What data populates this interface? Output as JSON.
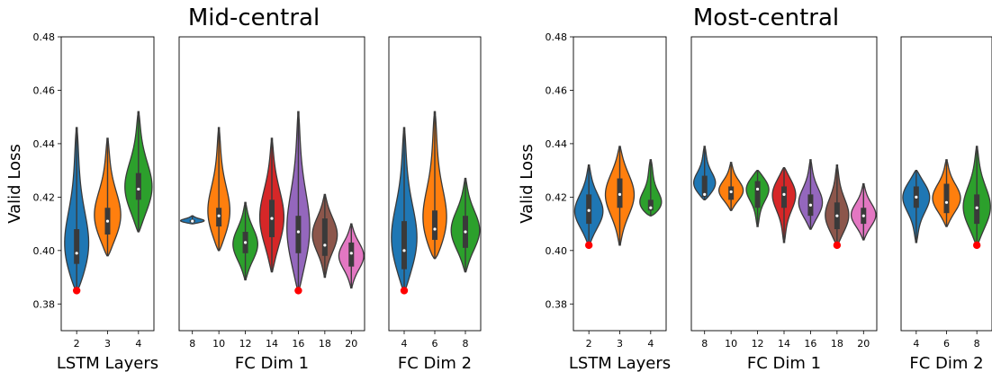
{
  "colors": {
    "blue": "#1f77b4",
    "orange": "#ff7f0e",
    "green": "#2ca02c",
    "red": "#d62728",
    "purple": "#9467bd",
    "brown": "#8c564b",
    "pink": "#e377c2",
    "outline": "#3a3a3a",
    "min_marker": "#ff0000"
  },
  "chart_data": [
    {
      "type": "violin",
      "title": "Mid-central",
      "ylabel": "Valid Loss",
      "ylim": [
        0.37,
        0.48
      ],
      "yticks": [
        "0.38",
        "0.40",
        "0.42",
        "0.44",
        "0.46",
        "0.48"
      ],
      "panels": [
        {
          "xlabel": "LSTM Layers",
          "categories": [
            "2",
            "3",
            "4"
          ],
          "violins": [
            {
              "color": "blue",
              "min": 0.385,
              "max": 0.446,
              "q1": 0.395,
              "median": 0.399,
              "q3": 0.408,
              "mode": 0.398,
              "min_marker": true
            },
            {
              "color": "orange",
              "min": 0.398,
              "max": 0.442,
              "q1": 0.406,
              "median": 0.411,
              "q3": 0.416,
              "mode": 0.411
            },
            {
              "color": "green",
              "min": 0.407,
              "max": 0.452,
              "q1": 0.419,
              "median": 0.423,
              "q3": 0.429,
              "mode": 0.422
            }
          ]
        },
        {
          "xlabel": "FC Dim 1",
          "categories": [
            "8",
            "10",
            "12",
            "14",
            "16",
            "18",
            "20"
          ],
          "violins": [
            {
              "color": "blue",
              "min": 0.41,
              "max": 0.413,
              "q1": 0.4105,
              "median": 0.411,
              "q3": 0.4115,
              "mode": 0.411
            },
            {
              "color": "orange",
              "min": 0.4,
              "max": 0.446,
              "q1": 0.409,
              "median": 0.413,
              "q3": 0.416,
              "mode": 0.412
            },
            {
              "color": "green",
              "min": 0.389,
              "max": 0.418,
              "q1": 0.399,
              "median": 0.403,
              "q3": 0.407,
              "mode": 0.402
            },
            {
              "color": "red",
              "min": 0.392,
              "max": 0.442,
              "q1": 0.405,
              "median": 0.412,
              "q3": 0.419,
              "mode": 0.411
            },
            {
              "color": "purple",
              "min": 0.385,
              "max": 0.452,
              "q1": 0.399,
              "median": 0.407,
              "q3": 0.413,
              "mode": 0.405,
              "min_marker": true
            },
            {
              "color": "brown",
              "min": 0.39,
              "max": 0.421,
              "q1": 0.398,
              "median": 0.402,
              "q3": 0.412,
              "mode": 0.406
            },
            {
              "color": "pink",
              "min": 0.386,
              "max": 0.41,
              "q1": 0.394,
              "median": 0.399,
              "q3": 0.403,
              "mode": 0.398
            }
          ]
        },
        {
          "xlabel": "FC Dim 2",
          "categories": [
            "4",
            "6",
            "8"
          ],
          "violins": [
            {
              "color": "blue",
              "min": 0.385,
              "max": 0.446,
              "q1": 0.393,
              "median": 0.4,
              "q3": 0.411,
              "mode": 0.401,
              "min_marker": true
            },
            {
              "color": "orange",
              "min": 0.397,
              "max": 0.452,
              "q1": 0.404,
              "median": 0.408,
              "q3": 0.415,
              "mode": 0.408
            },
            {
              "color": "green",
              "min": 0.392,
              "max": 0.427,
              "q1": 0.401,
              "median": 0.407,
              "q3": 0.413,
              "mode": 0.407
            }
          ]
        }
      ]
    },
    {
      "type": "violin",
      "title": "Most-central",
      "ylabel": "Valid Loss",
      "ylim": [
        0.37,
        0.48
      ],
      "yticks": [
        "0.38",
        "0.40",
        "0.42",
        "0.44",
        "0.46",
        "0.48"
      ],
      "panels": [
        {
          "xlabel": "LSTM Layers",
          "categories": [
            "2",
            "3",
            "4"
          ],
          "violins": [
            {
              "color": "blue",
              "min": 0.402,
              "max": 0.432,
              "q1": 0.41,
              "median": 0.415,
              "q3": 0.421,
              "mode": 0.414,
              "min_marker": true
            },
            {
              "color": "orange",
              "min": 0.402,
              "max": 0.439,
              "q1": 0.416,
              "median": 0.421,
              "q3": 0.427,
              "mode": 0.421
            },
            {
              "color": "green",
              "min": 0.413,
              "max": 0.434,
              "q1": 0.415,
              "median": 0.416,
              "q3": 0.419,
              "mode": 0.416
            }
          ]
        },
        {
          "xlabel": "FC Dim 1",
          "categories": [
            "8",
            "10",
            "12",
            "14",
            "16",
            "18",
            "20"
          ],
          "violins": [
            {
              "color": "blue",
              "min": 0.419,
              "max": 0.439,
              "q1": 0.42,
              "median": 0.421,
              "q3": 0.428,
              "mode": 0.424
            },
            {
              "color": "orange",
              "min": 0.415,
              "max": 0.433,
              "q1": 0.419,
              "median": 0.422,
              "q3": 0.424,
              "mode": 0.422
            },
            {
              "color": "green",
              "min": 0.409,
              "max": 0.43,
              "q1": 0.416,
              "median": 0.423,
              "q3": 0.426,
              "mode": 0.424
            },
            {
              "color": "red",
              "min": 0.403,
              "max": 0.431,
              "q1": 0.416,
              "median": 0.421,
              "q3": 0.424,
              "mode": 0.422
            },
            {
              "color": "purple",
              "min": 0.408,
              "max": 0.434,
              "q1": 0.413,
              "median": 0.417,
              "q3": 0.421,
              "mode": 0.417
            },
            {
              "color": "brown",
              "min": 0.402,
              "max": 0.432,
              "q1": 0.408,
              "median": 0.413,
              "q3": 0.418,
              "mode": 0.412,
              "min_marker": true
            },
            {
              "color": "pink",
              "min": 0.404,
              "max": 0.425,
              "q1": 0.41,
              "median": 0.413,
              "q3": 0.416,
              "mode": 0.413
            }
          ]
        },
        {
          "xlabel": "FC Dim 2",
          "categories": [
            "4",
            "6",
            "8"
          ],
          "violins": [
            {
              "color": "blue",
              "min": 0.403,
              "max": 0.43,
              "q1": 0.416,
              "median": 0.42,
              "q3": 0.424,
              "mode": 0.421
            },
            {
              "color": "orange",
              "min": 0.409,
              "max": 0.434,
              "q1": 0.414,
              "median": 0.418,
              "q3": 0.425,
              "mode": 0.419
            },
            {
              "color": "green",
              "min": 0.402,
              "max": 0.439,
              "q1": 0.41,
              "median": 0.416,
              "q3": 0.421,
              "mode": 0.415,
              "min_marker": true
            }
          ]
        }
      ]
    }
  ]
}
